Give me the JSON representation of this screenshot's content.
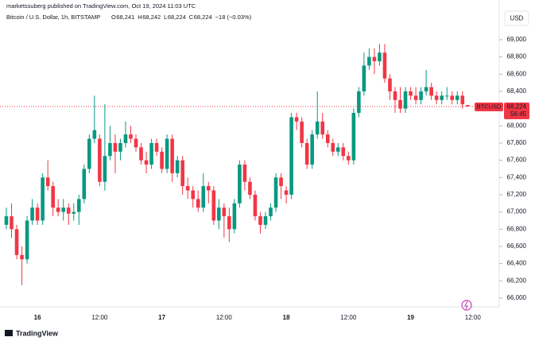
{
  "header": {
    "published": "marketssuberg published on TradingView.com, Oct 19, 2024 11:03 UTC",
    "symbol": "Bitcoin / U.S. Dollar, 1h, BITSTAMP",
    "legend": [
      {
        "key": "O",
        "value": "68,241"
      },
      {
        "key": "H",
        "value": "68,242"
      },
      {
        "key": "L",
        "value": "68,224"
      },
      {
        "key": "C",
        "value": "68,224"
      }
    ],
    "change": "−18 (−0.03%)",
    "currency_button": "USD"
  },
  "footer": {
    "logo": "TradingView"
  },
  "chart_data": {
    "type": "candlestick",
    "categories": [
      null,
      null,
      null,
      null,
      null,
      null,
      "16",
      null,
      null,
      null,
      null,
      null,
      null,
      null,
      null,
      null,
      null,
      null,
      "12:00",
      null,
      null,
      null,
      null,
      null,
      null,
      null,
      null,
      null,
      null,
      null,
      "17",
      null,
      null,
      null,
      null,
      null,
      null,
      null,
      null,
      null,
      null,
      null,
      "12:00",
      null,
      null,
      null,
      null,
      null,
      null,
      null,
      null,
      null,
      null,
      null,
      "18",
      null,
      null,
      null,
      null,
      null,
      null,
      null,
      null,
      null,
      null,
      null,
      "12:00",
      null,
      null,
      null,
      null,
      null,
      null,
      null,
      null,
      null,
      null,
      null,
      "19",
      null,
      null,
      null,
      null,
      null,
      null,
      null,
      null,
      null,
      null,
      null,
      "12:00"
    ],
    "series": [
      {
        "name": "BTCUSD",
        "up_color": "#089981",
        "down_color": "#f23645",
        "open": [
          66850,
          66950,
          66800,
          66500,
          66450,
          66900,
          67050,
          66900,
          67400,
          67300,
          67050,
          67000,
          67050,
          66980,
          67000,
          67150,
          67500,
          67850,
          67850,
          67350,
          67650,
          67800,
          67700,
          67800,
          67900,
          67850,
          67750,
          67600,
          67550,
          67800,
          67700,
          67500,
          67850,
          67450,
          67600,
          67300,
          67250,
          67150,
          67050,
          67300,
          67250,
          66900,
          67050,
          66950,
          66800,
          67100,
          67550,
          67350,
          67200,
          66950,
          66850,
          66950,
          67050,
          67400,
          67250,
          67200,
          68100,
          68050,
          67800,
          67550,
          67900,
          68050,
          67900,
          67800,
          67700,
          67750,
          67650,
          67600,
          68150,
          68400,
          68700,
          68800,
          68750,
          68850,
          68550,
          68400,
          68300,
          68200,
          68400,
          68350,
          68300,
          68400,
          68450,
          68350,
          68300,
          68350,
          68350,
          68300,
          68350,
          68241,
          null
        ],
        "high": [
          67050,
          67100,
          66850,
          66600,
          66950,
          67150,
          67100,
          67450,
          67600,
          67350,
          67150,
          67150,
          67100,
          67100,
          67200,
          67550,
          67900,
          68350,
          67900,
          68250,
          68000,
          67900,
          67850,
          68050,
          68000,
          67900,
          67800,
          67700,
          67850,
          67850,
          67750,
          67900,
          67900,
          67650,
          67650,
          67400,
          67300,
          67250,
          67450,
          67350,
          67300,
          67150,
          67100,
          67050,
          67150,
          67600,
          67600,
          67400,
          67250,
          67000,
          67000,
          67100,
          67450,
          67450,
          67300,
          68150,
          68150,
          68100,
          67850,
          67950,
          68400,
          68150,
          67950,
          67850,
          67800,
          67800,
          67700,
          68200,
          68450,
          68850,
          68900,
          68900,
          68950,
          68950,
          68600,
          68450,
          68450,
          68450,
          68450,
          68450,
          68450,
          68650,
          68500,
          68400,
          68400,
          68450,
          68400,
          68400,
          68400,
          68242,
          null
        ],
        "low": [
          66800,
          66700,
          66450,
          66150,
          66400,
          66850,
          66850,
          66850,
          67250,
          66950,
          66950,
          66900,
          66850,
          66900,
          66850,
          67100,
          67450,
          67800,
          67300,
          67250,
          67600,
          67450,
          67600,
          67750,
          67800,
          67700,
          67550,
          67450,
          67500,
          67650,
          67450,
          67450,
          67350,
          67400,
          67200,
          67150,
          67050,
          67000,
          67000,
          67100,
          66850,
          66800,
          66700,
          66650,
          66750,
          67050,
          67250,
          67150,
          66900,
          66750,
          66800,
          66900,
          67000,
          67150,
          67100,
          67150,
          67950,
          67750,
          67500,
          67500,
          67850,
          67850,
          67750,
          67650,
          67650,
          67600,
          67550,
          67550,
          68100,
          68350,
          68650,
          68600,
          68700,
          68500,
          68300,
          68150,
          68150,
          68150,
          68300,
          68250,
          68250,
          68350,
          68300,
          68250,
          68250,
          68300,
          68250,
          68250,
          68200,
          68224,
          null
        ],
        "close": [
          66950,
          66800,
          66500,
          66450,
          66900,
          67050,
          66900,
          67400,
          67300,
          67050,
          67000,
          67050,
          66980,
          67000,
          67150,
          67500,
          67850,
          67950,
          67350,
          67650,
          67800,
          67700,
          67800,
          67900,
          67850,
          67750,
          67600,
          67550,
          67800,
          67700,
          67500,
          67850,
          67450,
          67600,
          67300,
          67250,
          67150,
          67050,
          67300,
          67250,
          66900,
          67050,
          66950,
          66800,
          67100,
          67550,
          67350,
          67200,
          66950,
          66850,
          66950,
          67050,
          67400,
          67300,
          67200,
          68100,
          68050,
          67800,
          67550,
          67900,
          68050,
          67900,
          67800,
          67700,
          67750,
          67650,
          67600,
          68150,
          68400,
          68700,
          68800,
          68750,
          68850,
          68550,
          68400,
          68300,
          68200,
          68400,
          68350,
          68300,
          68400,
          68450,
          68350,
          68300,
          68350,
          68350,
          68300,
          68350,
          68250,
          68224,
          null
        ]
      }
    ],
    "ylim": [
      65900,
      69200
    ],
    "yticks": [
      {
        "value": 66000,
        "label": "66,000"
      },
      {
        "value": 66200,
        "label": "66,200"
      },
      {
        "value": 66400,
        "label": "66,400"
      },
      {
        "value": 66600,
        "label": "66,600"
      },
      {
        "value": 66800,
        "label": "66,800"
      },
      {
        "value": 67000,
        "label": "67,000"
      },
      {
        "value": 67200,
        "label": "67,200"
      },
      {
        "value": 67400,
        "label": "67,400"
      },
      {
        "value": 67600,
        "label": "67,600"
      },
      {
        "value": 67800,
        "label": "67,800"
      },
      {
        "value": 68000,
        "label": "68,000"
      },
      {
        "value": 68200,
        "label": "68,200"
      },
      {
        "value": 68400,
        "label": "68,400"
      },
      {
        "value": 68600,
        "label": "68,600"
      },
      {
        "value": 68800,
        "label": "68,800"
      },
      {
        "value": 69000,
        "label": "69,000"
      }
    ],
    "grid": false,
    "last_price": {
      "value": 68224,
      "label": "68,224"
    },
    "countdown": "56:45"
  }
}
